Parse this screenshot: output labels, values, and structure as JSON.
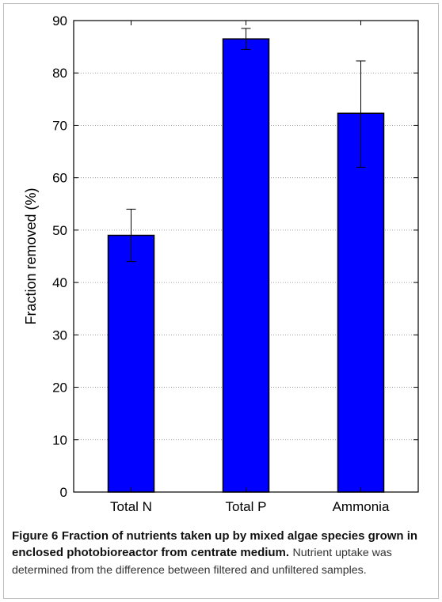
{
  "chart_data": {
    "type": "bar",
    "categories": [
      "Total N",
      "Total P",
      "Ammonia"
    ],
    "values": [
      49,
      86.5,
      72.3
    ],
    "error_bars": [
      {
        "low": 44,
        "high": 54
      },
      {
        "low": 84.5,
        "high": 88.5
      },
      {
        "low": 62,
        "high": 82.3
      }
    ],
    "ylabel": "Fraction removed (%)",
    "xlabel": "",
    "ylim": [
      0,
      90
    ],
    "yticks": [
      0,
      10,
      20,
      30,
      40,
      50,
      60,
      70,
      80,
      90
    ],
    "grid": "horizontal dotted",
    "colors": {
      "bar": "#0000ff",
      "bar_edge": "#000000",
      "error_bar": "#000000"
    }
  },
  "caption": {
    "label": "Figure 6",
    "title": "Fraction of nutrients taken up by mixed algae species grown in enclosed photobioreactor from centrate medium.",
    "description": "Nutrient uptake was determined from the difference between filtered and unfiltered samples."
  }
}
